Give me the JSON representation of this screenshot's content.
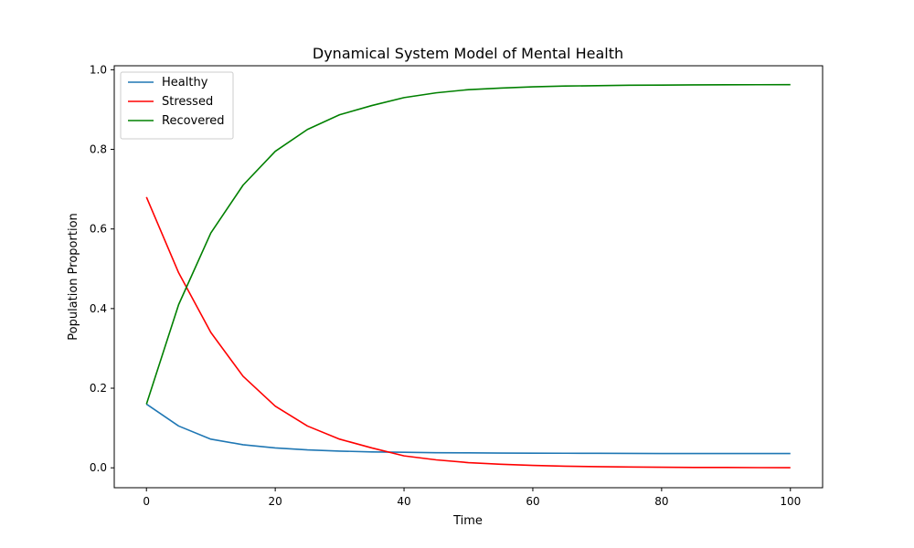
{
  "chart_data": {
    "type": "line",
    "title": "Dynamical System Model of Mental Health",
    "xlabel": "Time",
    "ylabel": "Population Proportion",
    "xlim": [
      -5,
      105
    ],
    "ylim": [
      -0.05,
      1.01
    ],
    "xticks": [
      0,
      20,
      40,
      60,
      80,
      100
    ],
    "yticks": [
      0.0,
      0.2,
      0.4,
      0.6,
      0.8,
      1.0
    ],
    "xtick_labels": [
      "0",
      "20",
      "40",
      "60",
      "80",
      "100"
    ],
    "ytick_labels": [
      "0.0",
      "0.2",
      "0.4",
      "0.6",
      "0.8",
      "1.0"
    ],
    "grid": false,
    "legend_position": "top-left",
    "x": [
      0,
      5,
      10,
      15,
      20,
      25,
      30,
      35,
      40,
      45,
      50,
      55,
      60,
      65,
      70,
      75,
      80,
      85,
      90,
      95,
      100
    ],
    "series": [
      {
        "name": "Healthy",
        "color": "#1f77b4",
        "values": [
          0.16,
          0.105,
          0.072,
          0.058,
          0.05,
          0.045,
          0.042,
          0.04,
          0.039,
          0.038,
          0.0375,
          0.037,
          0.0368,
          0.0366,
          0.0364,
          0.0362,
          0.036,
          0.036,
          0.036,
          0.036,
          0.036
        ]
      },
      {
        "name": "Stressed",
        "color": "#ff0000",
        "values": [
          0.68,
          0.49,
          0.34,
          0.23,
          0.155,
          0.105,
          0.072,
          0.05,
          0.03,
          0.02,
          0.013,
          0.009,
          0.006,
          0.004,
          0.003,
          0.002,
          0.0015,
          0.001,
          0.0008,
          0.0005,
          0.0003
        ]
      },
      {
        "name": "Recovered",
        "color": "#008000",
        "values": [
          0.16,
          0.41,
          0.59,
          0.71,
          0.795,
          0.85,
          0.887,
          0.91,
          0.93,
          0.942,
          0.95,
          0.954,
          0.957,
          0.959,
          0.96,
          0.961,
          0.9615,
          0.962,
          0.9622,
          0.9624,
          0.9625
        ]
      }
    ]
  }
}
